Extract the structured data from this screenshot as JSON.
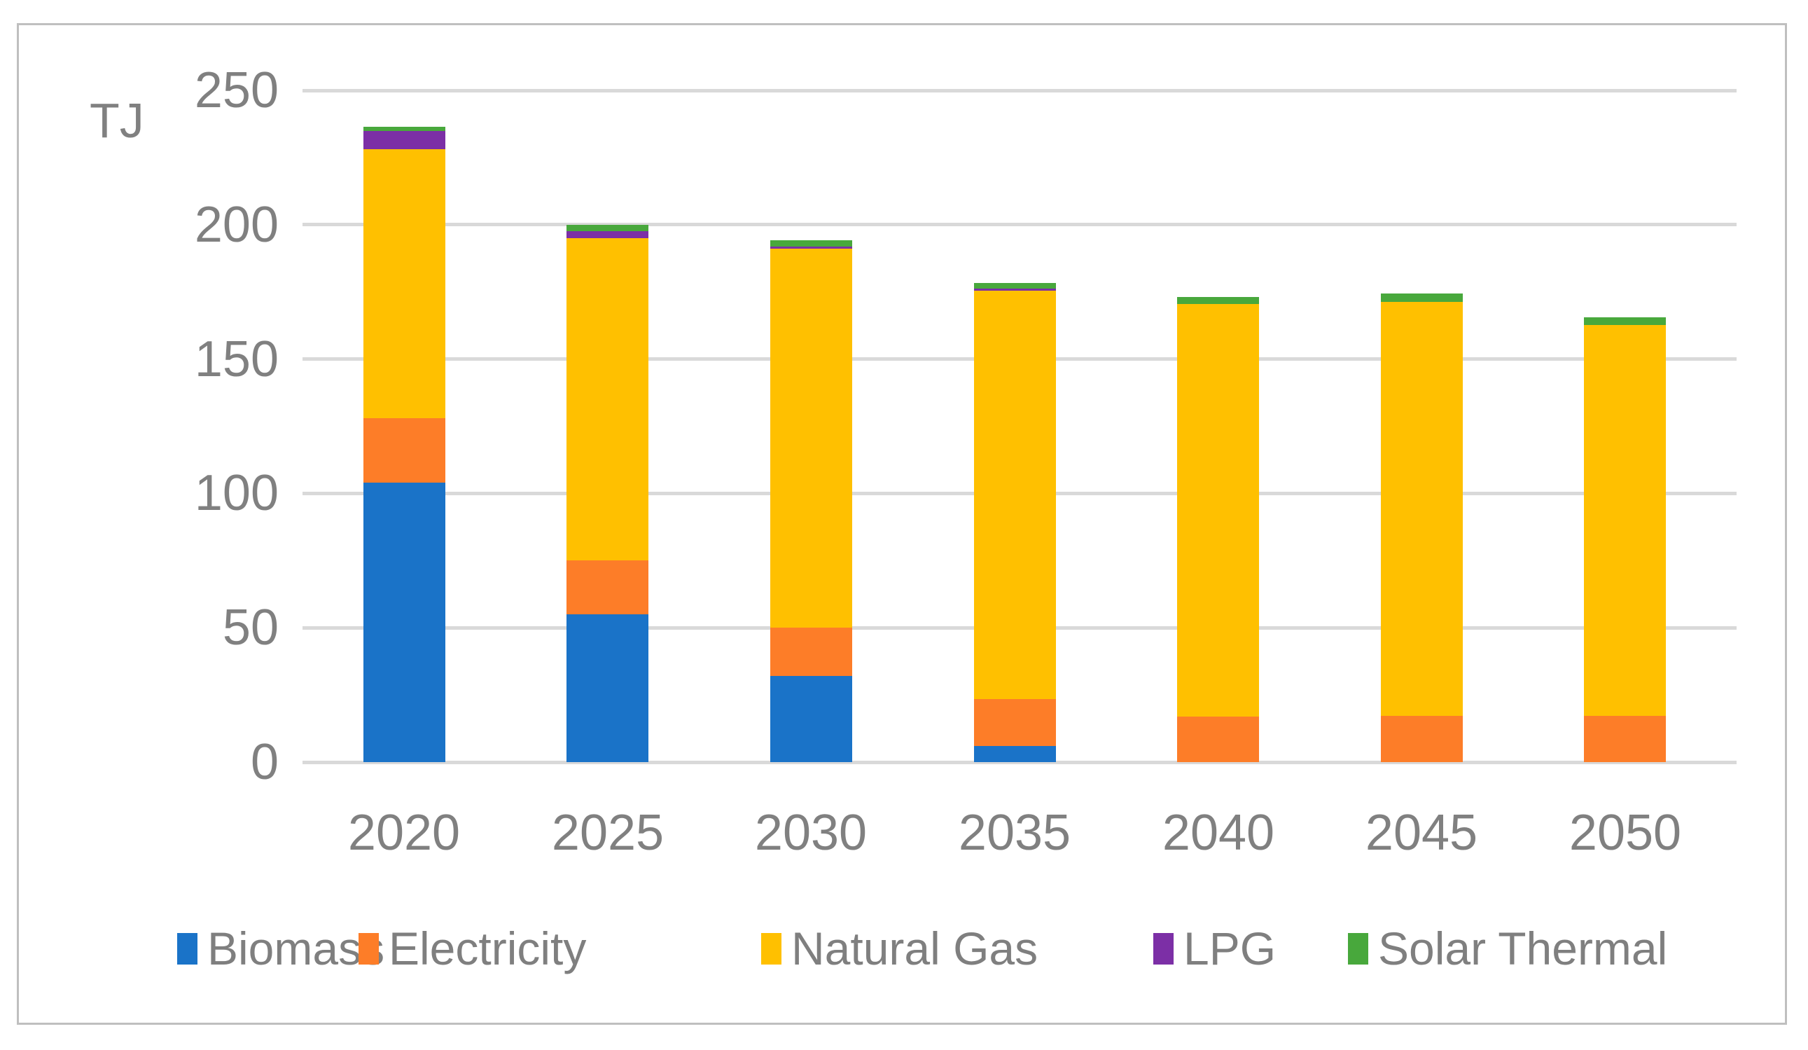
{
  "chart_data": {
    "type": "bar",
    "stacked": true,
    "title": "",
    "ylabel": "TJ",
    "xlabel": "",
    "categories": [
      "2020",
      "2025",
      "2030",
      "2035",
      "2040",
      "2045",
      "2050"
    ],
    "series": [
      {
        "name": "Biomass",
        "color": "#1A73C8",
        "values": [
          104,
          55,
          32,
          6,
          0,
          0,
          0
        ]
      },
      {
        "name": "Electricity",
        "color": "#FD7D28",
        "values": [
          24,
          20,
          18,
          17.5,
          17,
          17.3,
          17.3
        ]
      },
      {
        "name": "Natural Gas",
        "color": "#FFC000",
        "values": [
          100,
          120,
          141,
          152,
          153.5,
          154,
          145.5
        ]
      },
      {
        "name": "LPG",
        "color": "#7C2FA6",
        "values": [
          7,
          2.5,
          1,
          0.7,
          0,
          0,
          0
        ]
      },
      {
        "name": "Solar Thermal",
        "color": "#48A83C",
        "values": [
          1.5,
          2.5,
          2.2,
          2,
          2.7,
          3,
          2.7
        ]
      }
    ],
    "ylim": [
      0,
      250
    ],
    "yticks": [
      0,
      50,
      100,
      150,
      200,
      250
    ],
    "grid": true,
    "gridline_color": "#D9D9D9",
    "axis_text_color": "#808080",
    "legend_position": "bottom",
    "frame_border_color": "#BFBFBF"
  }
}
